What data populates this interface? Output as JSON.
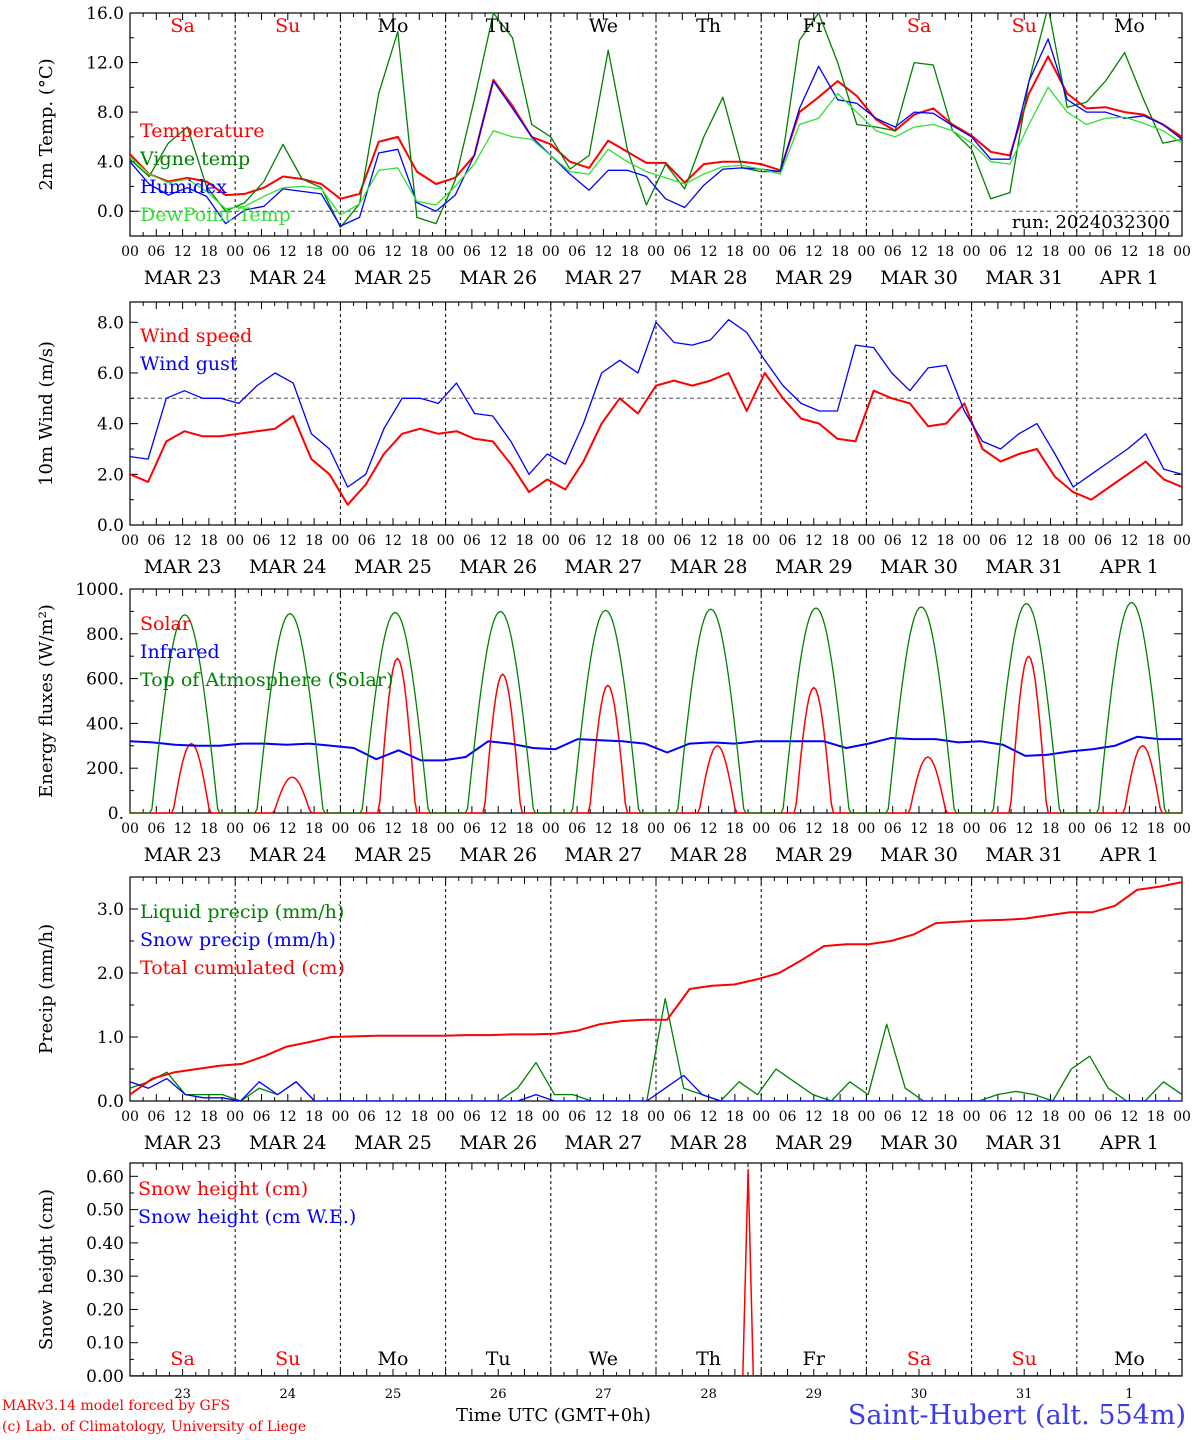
{
  "colors": {
    "red": "#ff0000",
    "blue": "#0000ff",
    "green": "#008000",
    "lightgreen": "#33e033",
    "weekend": "#ff0000",
    "weekday": "#000000",
    "grid": "#555555"
  },
  "x_axis": {
    "hour_labels": [
      "00",
      "06",
      "12",
      "18"
    ],
    "date_labels": [
      "MAR 23",
      "MAR 24",
      "MAR 25",
      "MAR 26",
      "MAR 27",
      "MAR 28",
      "MAR 29",
      "MAR 30",
      "MAR 31",
      "APR  1"
    ],
    "day_names": [
      "Sa",
      "Su",
      "Mo",
      "Tu",
      "We",
      "Th",
      "Fr",
      "Sa",
      "Su",
      "Mo"
    ],
    "weekend": [
      true,
      true,
      false,
      false,
      false,
      false,
      false,
      true,
      true,
      false
    ],
    "day_numbers": [
      "23",
      "24",
      "25",
      "26",
      "27",
      "28",
      "29",
      "30",
      "31",
      "1"
    ],
    "days": 10
  },
  "footer": {
    "model": "MARv3.14 model forced by GFS",
    "lab": "(c) Lab. of Climatology, University of Liege",
    "axis_label": "Time UTC (GMT+0h)",
    "station": "Saint-Hubert (alt. 554m)"
  },
  "chart_data": [
    {
      "type": "line",
      "ylabel": "2m Temp. (°C)",
      "ylim": [
        -2,
        16
      ],
      "yticks": [
        "0.0",
        "4.0",
        "8.0",
        "12.0",
        "16.0"
      ],
      "ytick_values": [
        0,
        4,
        8,
        12,
        16
      ],
      "ref_line": 0,
      "annotation": "run: 2024032300",
      "show_day_names": true,
      "series": [
        {
          "name": "Temperature",
          "color": "#ff0000",
          "width": 2,
          "values": [
            4.6,
            3.0,
            2.4,
            2.7,
            2.4,
            1.3,
            1.4,
            1.9,
            2.8,
            2.6,
            2.2,
            1.0,
            1.4,
            5.6,
            6.0,
            3.2,
            2.2,
            2.7,
            4.5,
            10.6,
            8.5,
            6.0,
            5.4,
            4.0,
            3.5,
            5.7,
            4.8,
            3.9,
            3.9,
            2.3,
            3.8,
            4.0,
            4.0,
            3.8,
            3.3,
            8.0,
            9.2,
            10.5,
            9.3,
            7.4,
            6.5,
            7.8,
            8.3,
            7.0,
            6.1,
            4.8,
            4.5,
            9.5,
            12.5,
            9.5,
            8.3,
            8.4,
            8.0,
            7.8,
            7.0,
            6.0
          ]
        },
        {
          "name": "Vigne temp",
          "color": "#008000",
          "width": 1.3,
          "values": [
            4.2,
            2.8,
            5.5,
            6.8,
            2.0,
            0.0,
            0.7,
            2.4,
            5.4,
            2.6,
            1.9,
            -1.3,
            0.6,
            9.5,
            14.5,
            -0.5,
            -1.0,
            2.5,
            9.0,
            16.0,
            14.0,
            7.0,
            6.0,
            3.4,
            4.5,
            13.0,
            5.0,
            0.5,
            3.8,
            1.8,
            6.0,
            9.2,
            3.5,
            3.2,
            3.2,
            13.8,
            16.0,
            12.0,
            7.0,
            6.8,
            6.5,
            12.0,
            11.8,
            6.5,
            5.0,
            1.0,
            1.5,
            10.5,
            16.5,
            8.4,
            8.8,
            10.5,
            12.8,
            9.0,
            5.5,
            5.8
          ]
        },
        {
          "name": "Humidex",
          "color": "#0000ff",
          "width": 1.3,
          "values": [
            4.0,
            2.2,
            1.3,
            1.9,
            1.2,
            -1.0,
            0.1,
            0.4,
            1.8,
            1.6,
            1.4,
            -1.2,
            -0.5,
            4.7,
            5.0,
            0.7,
            0.0,
            1.3,
            4.5,
            10.5,
            8.3,
            6.0,
            4.5,
            3.0,
            1.7,
            3.3,
            3.3,
            2.8,
            1.0,
            0.3,
            2.1,
            3.4,
            3.5,
            3.4,
            3.2,
            8.3,
            11.7,
            9.0,
            8.7,
            7.5,
            6.8,
            8.0,
            7.9,
            6.9,
            6.0,
            4.2,
            4.2,
            10.5,
            13.9,
            9.0,
            8.0,
            8.0,
            7.5,
            7.7,
            7.0,
            5.8
          ]
        },
        {
          "name": "DewPoint Temp",
          "color": "#33e033",
          "width": 1.3,
          "values": [
            4.4,
            3.0,
            2.3,
            2.6,
            1.6,
            0.2,
            0.4,
            1.2,
            1.9,
            2.0,
            1.8,
            -0.3,
            0.6,
            3.3,
            3.5,
            0.8,
            0.5,
            2.0,
            3.8,
            6.5,
            6.0,
            5.8,
            4.5,
            3.2,
            3.0,
            5.0,
            4.0,
            3.2,
            2.7,
            2.2,
            3.0,
            3.6,
            3.7,
            3.4,
            3.0,
            7.0,
            7.5,
            9.5,
            8.0,
            6.5,
            6.0,
            6.8,
            7.0,
            6.5,
            5.5,
            4.0,
            3.8,
            7.0,
            10.0,
            8.0,
            7.0,
            7.5,
            7.6,
            7.1,
            6.5,
            5.5
          ]
        }
      ]
    },
    {
      "type": "line",
      "ylabel": "10m Wind (m/s)",
      "ylim": [
        0,
        8.8
      ],
      "yticks": [
        "0.0",
        "2.0",
        "4.0",
        "6.0",
        "8.0"
      ],
      "ytick_values": [
        0,
        2,
        4,
        6,
        8
      ],
      "ref_line": 5,
      "show_day_names": false,
      "series": [
        {
          "name": "Wind speed",
          "color": "#ff0000",
          "width": 2,
          "values": [
            2.0,
            1.7,
            3.3,
            3.7,
            3.5,
            3.5,
            3.6,
            3.7,
            3.8,
            4.3,
            2.6,
            2.0,
            0.8,
            1.6,
            2.8,
            3.6,
            3.8,
            3.6,
            3.7,
            3.4,
            3.3,
            2.4,
            1.3,
            1.8,
            1.4,
            2.5,
            4.0,
            5.0,
            4.4,
            5.5,
            5.7,
            5.5,
            5.7,
            6.0,
            4.5,
            6.0,
            5.0,
            4.2,
            4.0,
            3.4,
            3.3,
            5.3,
            5.0,
            4.8,
            3.9,
            4.0,
            4.8,
            3.0,
            2.5,
            2.8,
            3.0,
            1.9,
            1.3,
            1.0,
            1.5,
            2.0,
            2.5,
            1.8,
            1.5
          ]
        },
        {
          "name": "Wind gust",
          "color": "#0000ff",
          "width": 1.3,
          "values": [
            2.7,
            2.6,
            5.0,
            5.3,
            5.0,
            5.0,
            4.8,
            5.5,
            6.0,
            5.6,
            3.6,
            3.0,
            1.5,
            2.0,
            3.8,
            5.0,
            5.0,
            4.8,
            5.6,
            4.4,
            4.3,
            3.3,
            2.0,
            2.8,
            2.4,
            4.0,
            6.0,
            6.5,
            6.0,
            8.0,
            7.2,
            7.1,
            7.3,
            8.1,
            7.6,
            6.5,
            5.5,
            4.8,
            4.5,
            4.5,
            7.1,
            7.0,
            6.0,
            5.3,
            6.2,
            6.3,
            4.5,
            3.3,
            3.0,
            3.6,
            4.0,
            2.8,
            1.5,
            2.0,
            2.5,
            3.0,
            3.6,
            2.2,
            2.0
          ]
        }
      ]
    },
    {
      "type": "line",
      "ylabel": "Energy fluxes (W/m²)",
      "ylim": [
        0,
        1000
      ],
      "yticks": [
        "0.",
        "200.",
        "400.",
        "600.",
        "800.",
        "1000."
      ],
      "ytick_values": [
        0,
        200,
        400,
        600,
        800,
        1000
      ],
      "show_day_names": false,
      "series": [
        {
          "name": "Solar",
          "color": "#ff0000",
          "width": 1.5,
          "peaks": [
            {
              "day": 0,
              "hour": 14,
              "value": 310
            },
            {
              "day": 1,
              "hour": 13,
              "value": 160
            },
            {
              "day": 2,
              "hour": 13,
              "value": 690
            },
            {
              "day": 3,
              "hour": 13,
              "value": 620
            },
            {
              "day": 4,
              "hour": 13,
              "value": 570
            },
            {
              "day": 5,
              "hour": 14,
              "value": 300
            },
            {
              "day": 6,
              "hour": 12,
              "value": 560
            },
            {
              "day": 7,
              "hour": 14,
              "value": 250
            },
            {
              "day": 8,
              "hour": 13,
              "value": 700
            },
            {
              "day": 9,
              "hour": 15,
              "value": 300
            }
          ]
        },
        {
          "name": "Infrared",
          "color": "#0000ff",
          "width": 2,
          "values": [
            320,
            315,
            305,
            300,
            300,
            310,
            310,
            305,
            310,
            300,
            290,
            240,
            280,
            235,
            235,
            250,
            320,
            310,
            290,
            285,
            330,
            325,
            320,
            310,
            270,
            310,
            315,
            310,
            320,
            320,
            320,
            320,
            290,
            310,
            335,
            330,
            330,
            315,
            320,
            305,
            255,
            260,
            275,
            285,
            300,
            340,
            330,
            330
          ]
        },
        {
          "name": "Top of Atmosphere (Solar)",
          "color": "#008000",
          "width": 1.3,
          "peaks": [
            {
              "day": 0,
              "hour": 12.5,
              "value": 885
            },
            {
              "day": 1,
              "hour": 12.5,
              "value": 890
            },
            {
              "day": 2,
              "hour": 12.5,
              "value": 895
            },
            {
              "day": 3,
              "hour": 12.5,
              "value": 900
            },
            {
              "day": 4,
              "hour": 12.5,
              "value": 905
            },
            {
              "day": 5,
              "hour": 12.5,
              "value": 910
            },
            {
              "day": 6,
              "hour": 12.5,
              "value": 915
            },
            {
              "day": 7,
              "hour": 12.5,
              "value": 920
            },
            {
              "day": 8,
              "hour": 12.5,
              "value": 935
            },
            {
              "day": 9,
              "hour": 12.5,
              "value": 940
            }
          ]
        }
      ]
    },
    {
      "type": "line",
      "ylabel": "Precip (mm/h)",
      "ylim": [
        0,
        3.5
      ],
      "yticks": [
        "0.0",
        "1.0",
        "2.0",
        "3.0"
      ],
      "ytick_values": [
        0,
        1,
        2,
        3
      ],
      "show_day_names": false,
      "series": [
        {
          "name": "Liquid precip (mm/h)",
          "color": "#008000",
          "width": 1.3,
          "values": [
            0.2,
            0.3,
            0.45,
            0.1,
            0.1,
            0.1,
            0.0,
            0.2,
            0.1,
            0.3,
            0.0,
            0.0,
            0.0,
            0.0,
            0.0,
            0.0,
            0.0,
            0.0,
            0.0,
            0.0,
            0.0,
            0.2,
            0.6,
            0.1,
            0.1,
            0.0,
            0.0,
            0.0,
            0.0,
            1.6,
            0.2,
            0.1,
            0.0,
            0.3,
            0.1,
            0.5,
            0.3,
            0.1,
            0.0,
            0.3,
            0.1,
            1.2,
            0.2,
            0.0,
            0.0,
            0.0,
            0.0,
            0.1,
            0.15,
            0.1,
            0.0,
            0.5,
            0.7,
            0.2,
            0.0,
            0.0,
            0.3,
            0.1
          ]
        },
        {
          "name": "Snow precip (mm/h)",
          "color": "#0000ff",
          "width": 1.3,
          "values": [
            0.3,
            0.2,
            0.35,
            0.1,
            0.05,
            0.05,
            0.0,
            0.3,
            0.1,
            0.3,
            0.0,
            0.0,
            0.0,
            0.0,
            0.0,
            0.0,
            0.0,
            0.0,
            0.0,
            0.0,
            0.0,
            0.0,
            0.1,
            0.0,
            0.0,
            0.0,
            0.0,
            0.0,
            0.0,
            0.2,
            0.4,
            0.1,
            0.0,
            0.0,
            0.0,
            0.0,
            0.0,
            0.0,
            0.0,
            0.0,
            0.0,
            0.0,
            0.0,
            0.0,
            0.0,
            0.0,
            0.0,
            0.0,
            0.0,
            0.0,
            0.0,
            0.0,
            0.0,
            0.0,
            0.0,
            0.0,
            0.0,
            0.0
          ]
        },
        {
          "name": "Total cumulated (cm)",
          "color": "#ff0000",
          "width": 2,
          "values": [
            0.1,
            0.35,
            0.45,
            0.5,
            0.55,
            0.58,
            0.7,
            0.85,
            0.92,
            1.0,
            1.01,
            1.02,
            1.02,
            1.02,
            1.02,
            1.03,
            1.03,
            1.04,
            1.04,
            1.05,
            1.1,
            1.2,
            1.25,
            1.27,
            1.27,
            1.75,
            1.8,
            1.82,
            1.9,
            2.0,
            2.2,
            2.42,
            2.45,
            2.45,
            2.5,
            2.6,
            2.78,
            2.8,
            2.82,
            2.83,
            2.85,
            2.9,
            2.95,
            2.95,
            3.05,
            3.3,
            3.35,
            3.42
          ]
        }
      ]
    },
    {
      "type": "line",
      "ylabel": "Snow height (cm)",
      "ylim": [
        0,
        0.64
      ],
      "yticks": [
        "0.00",
        "0.10",
        "0.20",
        "0.30",
        "0.40",
        "0.50",
        "0.60"
      ],
      "ytick_values": [
        0,
        0.1,
        0.2,
        0.3,
        0.4,
        0.5,
        0.6
      ],
      "show_day_names": false,
      "series": [
        {
          "name": "Snow height (cm)",
          "color": "#ff0000",
          "width": 1.5,
          "spike": {
            "day": 5,
            "hour": 21,
            "value": 0.62,
            "half_width_h": 1.2
          }
        },
        {
          "name": "Snow height (cm W.E.)",
          "color": "#0000ff",
          "width": 1.5,
          "values": [
            0,
            0
          ]
        }
      ]
    }
  ]
}
